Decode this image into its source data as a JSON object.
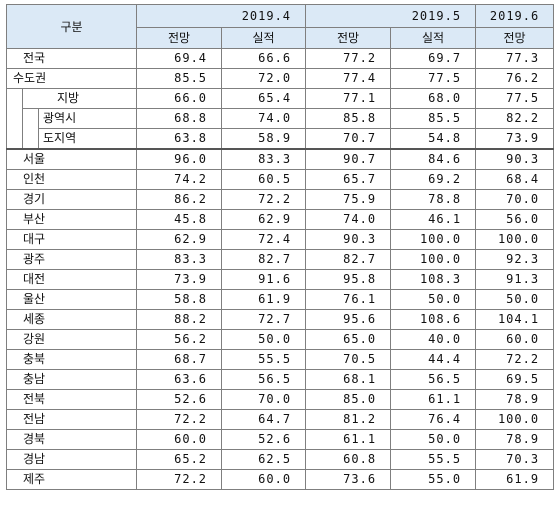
{
  "header": {
    "corner_label": "구분",
    "periods": [
      "2019.4",
      "2019.5",
      "2019.6"
    ],
    "forecast_label": "전망",
    "actual_label": "실적"
  },
  "rows": [
    {
      "label": "전국",
      "values": [
        "69.4",
        "66.6",
        "77.2",
        "69.7",
        "77.3"
      ]
    },
    {
      "label": "수도권",
      "values": [
        "85.5",
        "72.0",
        "77.4",
        "77.5",
        "76.2"
      ]
    },
    {
      "label": "지방",
      "values": [
        "66.0",
        "65.4",
        "77.1",
        "68.0",
        "77.5"
      ]
    },
    {
      "label": "광역시",
      "values": [
        "68.8",
        "74.0",
        "85.8",
        "85.5",
        "82.2"
      ]
    },
    {
      "label": "도지역",
      "values": [
        "63.8",
        "58.9",
        "70.7",
        "54.8",
        "73.9"
      ]
    },
    {
      "label": "서울",
      "values": [
        "96.0",
        "83.3",
        "90.7",
        "84.6",
        "90.3"
      ]
    },
    {
      "label": "인천",
      "values": [
        "74.2",
        "60.5",
        "65.7",
        "69.2",
        "68.4"
      ]
    },
    {
      "label": "경기",
      "values": [
        "86.2",
        "72.2",
        "75.9",
        "78.8",
        "70.0"
      ]
    },
    {
      "label": "부산",
      "values": [
        "45.8",
        "62.9",
        "74.0",
        "46.1",
        "56.0"
      ]
    },
    {
      "label": "대구",
      "values": [
        "62.9",
        "72.4",
        "90.3",
        "100.0",
        "100.0"
      ]
    },
    {
      "label": "광주",
      "values": [
        "83.3",
        "82.7",
        "82.7",
        "100.0",
        "92.3"
      ]
    },
    {
      "label": "대전",
      "values": [
        "73.9",
        "91.6",
        "95.8",
        "108.3",
        "91.3"
      ]
    },
    {
      "label": "울산",
      "values": [
        "58.8",
        "61.9",
        "76.1",
        "50.0",
        "50.0"
      ]
    },
    {
      "label": "세종",
      "values": [
        "88.2",
        "72.7",
        "95.6",
        "108.6",
        "104.1"
      ]
    },
    {
      "label": "강원",
      "values": [
        "56.2",
        "50.0",
        "65.0",
        "40.0",
        "60.0"
      ]
    },
    {
      "label": "충북",
      "values": [
        "68.7",
        "55.5",
        "70.5",
        "44.4",
        "72.2"
      ]
    },
    {
      "label": "충남",
      "values": [
        "63.6",
        "56.5",
        "68.1",
        "56.5",
        "69.5"
      ]
    },
    {
      "label": "전북",
      "values": [
        "52.6",
        "70.0",
        "85.0",
        "61.1",
        "78.9"
      ]
    },
    {
      "label": "전남",
      "values": [
        "72.2",
        "64.7",
        "81.2",
        "76.4",
        "100.0"
      ]
    },
    {
      "label": "경북",
      "values": [
        "60.0",
        "52.6",
        "61.1",
        "50.0",
        "78.9"
      ]
    },
    {
      "label": "경남",
      "values": [
        "65.2",
        "62.5",
        "60.8",
        "55.5",
        "70.3"
      ]
    },
    {
      "label": "제주",
      "values": [
        "72.2",
        "60.0",
        "73.6",
        "55.0",
        "61.9"
      ]
    }
  ]
}
